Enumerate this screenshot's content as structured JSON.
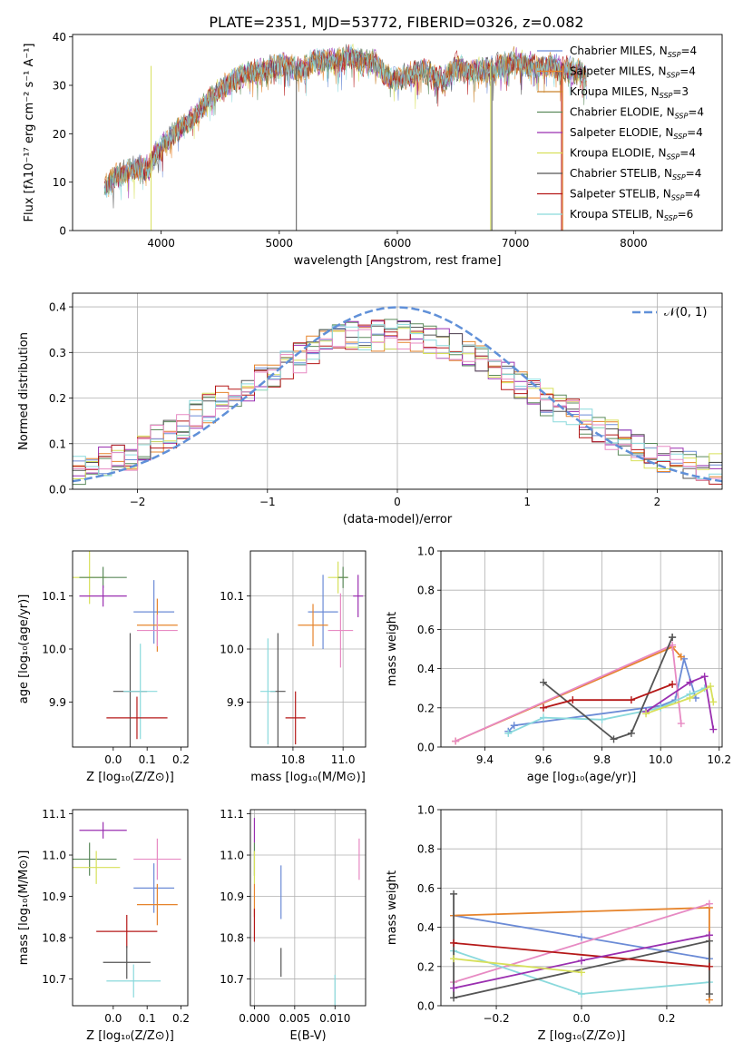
{
  "colors": {
    "Chabrier MILES": "#6b8bd6",
    "Salpeter MILES": "#e6842c",
    "Kroupa MILES": "#c9822a",
    "Chabrier ELODIE": "#5b8a5b",
    "Salpeter ELODIE": "#9a2fb0",
    "Kroupa ELODIE": "#d7e05a",
    "Chabrier STELIB": "#555555",
    "Salpeter STELIB": "#b51818",
    "Kroupa STELIB": "#8ad9dc",
    "Salpeter ELODIE (pink)": "#e78ac3",
    "normal": "#6090d8"
  },
  "chart_data": [
    {
      "id": "spectrum",
      "type": "line",
      "title": "PLATE=2351, MJD=53772, FIBERID=0326, z=0.082",
      "xlabel": "wavelength [Angstrom, rest frame]",
      "ylabel": "Flux [fλ10⁻¹⁷ erg cm⁻² s⁻¹ A⁻¹]",
      "xlim": [
        3250,
        8750
      ],
      "ylim": [
        0,
        40.5
      ],
      "xticks": [
        4000,
        5000,
        6000,
        7000,
        8000
      ],
      "yticks": [
        0,
        10,
        20,
        30,
        40
      ],
      "legend": "top-right",
      "legend_entries": [
        {
          "label": "Chabrier MILES, N",
          "sub": "SSP",
          "suffix": "=4",
          "color": "#6b8bd6"
        },
        {
          "label": "Salpeter MILES, N",
          "sub": "SSP",
          "suffix": "=4",
          "color": "#e6842c"
        },
        {
          "label": "Kroupa MILES, N",
          "sub": "SSP",
          "suffix": "=3",
          "color": "#c9822a"
        },
        {
          "label": "Chabrier ELODIE, N",
          "sub": "SSP",
          "suffix": "=4",
          "color": "#5b8a5b"
        },
        {
          "label": "Salpeter ELODIE, N",
          "sub": "SSP",
          "suffix": "=4",
          "color": "#9a2fb0"
        },
        {
          "label": "Kroupa ELODIE, N",
          "sub": "SSP",
          "suffix": "=4",
          "color": "#d7e05a"
        },
        {
          "label": "Chabrier STELIB, N",
          "sub": "SSP",
          "suffix": "=4",
          "color": "#555555"
        },
        {
          "label": "Salpeter STELIB, N",
          "sub": "SSP",
          "suffix": "=4",
          "color": "#b51818"
        },
        {
          "label": "Kroupa STELIB, N",
          "sub": "SSP",
          "suffix": "=6",
          "color": "#8ad9dc"
        }
      ],
      "envelope": {
        "x": [
          3520,
          3600,
          3700,
          3800,
          3900,
          3950,
          4000,
          4100,
          4200,
          4300,
          4400,
          4500,
          4600,
          4700,
          4800,
          4900,
          5000,
          5100,
          5200,
          5300,
          5400,
          5500,
          5600,
          5700,
          5800,
          5900,
          6000,
          6100,
          6200,
          6300,
          6400,
          6500,
          6600,
          6700,
          6800,
          6900,
          7000,
          7100,
          7200,
          7300,
          7400,
          7500,
          7600
        ],
        "y": [
          9,
          11,
          12,
          13,
          13,
          16,
          17,
          20,
          22,
          24,
          27,
          29,
          31,
          32,
          33,
          33,
          34,
          34,
          33,
          35,
          35,
          35,
          36,
          35,
          35,
          32,
          31,
          32,
          33,
          32,
          31,
          34,
          33,
          33,
          33,
          34,
          35,
          34,
          34,
          34,
          33,
          33,
          32
        ]
      },
      "spikes": [
        {
          "x": 3915,
          "low": 0,
          "color": "#d7e05a"
        },
        {
          "x": 5145,
          "low": 0,
          "color": "#555555"
        },
        {
          "x": 6790,
          "low": 0,
          "color": "#d7e05a"
        },
        {
          "x": 6800,
          "low": 0,
          "color": "#555555"
        },
        {
          "x": 7390,
          "low": 0,
          "color": "#b51818"
        },
        {
          "x": 7400,
          "low": 0,
          "color": "#e6842c"
        }
      ]
    },
    {
      "id": "residuals",
      "type": "histogram",
      "xlabel": "(data-model)/error",
      "ylabel": "Normed distribution",
      "xlim": [
        -2.5,
        2.5
      ],
      "ylim": [
        0,
        0.43
      ],
      "xticks": [
        -2,
        -1,
        0,
        1,
        2
      ],
      "yticks": [
        0.0,
        0.1,
        0.2,
        0.3,
        0.4
      ],
      "legend": "top-right",
      "legend_label": "𝒩(0, 1)",
      "normal_curve": {
        "mean": 0,
        "sigma": 1,
        "color": "#6090d8",
        "style": "dashed"
      },
      "bin_width": 0.1,
      "hist_base": {
        "x": [
          -2.5,
          -2.0,
          -1.5,
          -1.0,
          -0.5,
          0.0,
          0.5,
          1.0,
          1.5,
          2.0,
          2.5
        ],
        "y": [
          0.04,
          0.08,
          0.17,
          0.25,
          0.33,
          0.34,
          0.31,
          0.22,
          0.14,
          0.07,
          0.04
        ]
      },
      "series_colors": [
        "#6b8bd6",
        "#e6842c",
        "#5b8a5b",
        "#9a2fb0",
        "#d7e05a",
        "#555555",
        "#b51818",
        "#8ad9dc",
        "#e78ac3"
      ]
    },
    {
      "id": "age-vs-z",
      "type": "scatter",
      "xlabel": "Z [log₁₀(Z/Z⊙)]",
      "ylabel": "age  [log₁₀(age/yr)]",
      "xlim": [
        -0.12,
        0.22
      ],
      "ylim": [
        9.815,
        10.185
      ],
      "xticks": [
        0.0,
        0.1,
        0.2
      ],
      "yticks": [
        9.9,
        10.0,
        10.1
      ],
      "points": [
        {
          "x": -0.07,
          "y": 10.135,
          "xerr": 0.05,
          "yerr": 0.05,
          "color": "#d7e05a"
        },
        {
          "x": -0.03,
          "y": 10.135,
          "xerr": 0.07,
          "yerr": 0.02,
          "color": "#5b8a5b"
        },
        {
          "x": -0.03,
          "y": 10.1,
          "xerr": 0.07,
          "yerr": 0.02,
          "color": "#9a2fb0"
        },
        {
          "x": 0.12,
          "y": 10.07,
          "xerr": 0.06,
          "yerr": 0.06,
          "color": "#6b8bd6"
        },
        {
          "x": 0.13,
          "y": 10.045,
          "xerr": 0.06,
          "yerr": 0.05,
          "color": "#e6842c"
        },
        {
          "x": 0.13,
          "y": 10.035,
          "xerr": 0.06,
          "yerr": 0.03,
          "color": "#e78ac3"
        },
        {
          "x": 0.05,
          "y": 9.92,
          "xerr": 0.05,
          "yerr": 0.11,
          "color": "#555555"
        },
        {
          "x": 0.08,
          "y": 9.92,
          "xerr": 0.05,
          "yerr": 0.09,
          "color": "#8ad9dc"
        },
        {
          "x": 0.07,
          "y": 9.87,
          "xerr": 0.09,
          "yerr": 0.04,
          "color": "#b51818"
        }
      ]
    },
    {
      "id": "age-vs-mass",
      "type": "scatter",
      "xlabel": "mass [log₁₀(M/M⊙)]",
      "ylabel": "",
      "xlim": [
        10.63,
        11.09
      ],
      "ylim": [
        9.815,
        10.185
      ],
      "xticks": [
        10.8,
        11.0
      ],
      "yticks": [
        9.9,
        10.0,
        10.1
      ],
      "points": [
        {
          "x": 10.98,
          "y": 10.135,
          "xerr": 0.04,
          "yerr": 0.03,
          "color": "#d7e05a"
        },
        {
          "x": 11.0,
          "y": 10.135,
          "xerr": 0.02,
          "yerr": 0.02,
          "color": "#5b8a5b"
        },
        {
          "x": 11.06,
          "y": 10.1,
          "xerr": 0.02,
          "yerr": 0.04,
          "color": "#9a2fb0"
        },
        {
          "x": 10.92,
          "y": 10.07,
          "xerr": 0.06,
          "yerr": 0.07,
          "color": "#6b8bd6"
        },
        {
          "x": 10.88,
          "y": 10.045,
          "xerr": 0.06,
          "yerr": 0.04,
          "color": "#e6842c"
        },
        {
          "x": 10.99,
          "y": 10.035,
          "xerr": 0.05,
          "yerr": 0.07,
          "color": "#e78ac3"
        },
        {
          "x": 10.74,
          "y": 9.92,
          "xerr": 0.03,
          "yerr": 0.11,
          "color": "#555555"
        },
        {
          "x": 10.7,
          "y": 9.92,
          "xerr": 0.03,
          "yerr": 0.1,
          "color": "#8ad9dc"
        },
        {
          "x": 10.81,
          "y": 9.87,
          "xerr": 0.04,
          "yerr": 0.05,
          "color": "#b51818"
        }
      ]
    },
    {
      "id": "massweight-vs-age",
      "type": "line",
      "xlabel": "age  [log₁₀(age/yr)]",
      "ylabel": "mass weight",
      "xlim": [
        9.25,
        10.21
      ],
      "ylim": [
        0,
        1.0
      ],
      "xticks": [
        9.4,
        9.6,
        9.8,
        10.0,
        10.2
      ],
      "yticks": [
        0.0,
        0.2,
        0.4,
        0.6,
        0.8,
        1.0
      ],
      "series": [
        {
          "color": "#6b8bd6",
          "x": [
            9.48,
            9.5,
            10.0,
            10.05,
            10.08,
            10.12
          ],
          "y": [
            0.08,
            0.11,
            0.21,
            0.24,
            0.45,
            0.25
          ]
        },
        {
          "color": "#e6842c",
          "x": [
            9.3,
            10.04,
            10.07
          ],
          "y": [
            0.03,
            0.51,
            0.46
          ]
        },
        {
          "color": "#e78ac3",
          "x": [
            9.3,
            10.04,
            10.07
          ],
          "y": [
            0.03,
            0.52,
            0.12
          ]
        },
        {
          "color": "#8ad9dc",
          "x": [
            9.48,
            9.6,
            9.8,
            10.0,
            10.1,
            10.15
          ],
          "y": [
            0.07,
            0.15,
            0.14,
            0.2,
            0.27,
            0.3
          ]
        },
        {
          "color": "#555555",
          "x": [
            9.6,
            9.84,
            9.9,
            10.04,
            10.04
          ],
          "y": [
            0.33,
            0.04,
            0.07,
            0.56,
            0.56
          ]
        },
        {
          "color": "#b51818",
          "x": [
            9.6,
            9.7,
            9.9,
            10.04
          ],
          "y": [
            0.2,
            0.24,
            0.24,
            0.32
          ]
        },
        {
          "color": "#9a2fb0",
          "x": [
            9.95,
            10.1,
            10.15,
            10.18
          ],
          "y": [
            0.18,
            0.33,
            0.36,
            0.09
          ]
        },
        {
          "color": "#d7e05a",
          "x": [
            9.95,
            10.1,
            10.17,
            10.18
          ],
          "y": [
            0.17,
            0.25,
            0.31,
            0.23
          ]
        }
      ]
    },
    {
      "id": "mass-vs-z",
      "type": "scatter",
      "xlabel": "Z [log₁₀(Z/Z⊙)]",
      "ylabel": "mass [log₁₀(M/M⊙)]",
      "xlim": [
        -0.12,
        0.22
      ],
      "ylim": [
        10.635,
        11.11
      ],
      "xticks": [
        0.0,
        0.1,
        0.2
      ],
      "yticks": [
        10.7,
        10.8,
        10.9,
        11.0,
        11.1
      ],
      "points": [
        {
          "x": -0.03,
          "y": 11.06,
          "xerr": 0.07,
          "yerr": 0.02,
          "color": "#9a2fb0"
        },
        {
          "x": -0.07,
          "y": 10.99,
          "xerr": 0.08,
          "yerr": 0.04,
          "color": "#5b8a5b"
        },
        {
          "x": -0.05,
          "y": 10.97,
          "xerr": 0.07,
          "yerr": 0.04,
          "color": "#d7e05a"
        },
        {
          "x": 0.13,
          "y": 10.99,
          "xerr": 0.07,
          "yerr": 0.05,
          "color": "#e78ac3"
        },
        {
          "x": 0.12,
          "y": 10.92,
          "xerr": 0.06,
          "yerr": 0.06,
          "color": "#6b8bd6"
        },
        {
          "x": 0.13,
          "y": 10.88,
          "xerr": 0.06,
          "yerr": 0.05,
          "color": "#e6842c"
        },
        {
          "x": 0.04,
          "y": 10.815,
          "xerr": 0.09,
          "yerr": 0.04,
          "color": "#b51818"
        },
        {
          "x": 0.04,
          "y": 10.74,
          "xerr": 0.07,
          "yerr": 0.04,
          "color": "#555555"
        },
        {
          "x": 0.06,
          "y": 10.695,
          "xerr": 0.08,
          "yerr": 0.04,
          "color": "#8ad9dc"
        }
      ]
    },
    {
      "id": "mass-vs-ebv",
      "type": "scatter",
      "xlabel": "E(B-V)",
      "ylabel": "",
      "xlim": [
        -0.0005,
        0.0138
      ],
      "ylim": [
        10.635,
        11.11
      ],
      "xticks": [
        0.0,
        0.005,
        0.01
      ],
      "yticks": [
        10.7,
        10.8,
        10.9,
        11.0,
        11.1
      ],
      "points": [
        {
          "x": 0.0,
          "y": 11.06,
          "xerr": 0,
          "yerr": 0.03,
          "color": "#9a2fb0"
        },
        {
          "x": 0.0,
          "y": 10.99,
          "xerr": 0,
          "yerr": 0.04,
          "color": "#5b8a5b"
        },
        {
          "x": 0.0,
          "y": 10.97,
          "xerr": 0,
          "yerr": 0.04,
          "color": "#d7e05a"
        },
        {
          "x": 0.0,
          "y": 10.89,
          "xerr": 0,
          "yerr": 0.04,
          "color": "#e6842c"
        },
        {
          "x": 0.0,
          "y": 10.83,
          "xerr": 0,
          "yerr": 0.04,
          "color": "#b51818"
        },
        {
          "x": 0.0033,
          "y": 10.91,
          "xerr": 0,
          "yerr": 0.065,
          "color": "#6b8bd6"
        },
        {
          "x": 0.0033,
          "y": 10.74,
          "xerr": 0,
          "yerr": 0.035,
          "color": "#555555"
        },
        {
          "x": 0.01,
          "y": 10.67,
          "xerr": 0,
          "yerr": 0.04,
          "color": "#8ad9dc"
        },
        {
          "x": 0.013,
          "y": 10.99,
          "xerr": 0,
          "yerr": 0.05,
          "color": "#e78ac3"
        }
      ]
    },
    {
      "id": "massweight-vs-z",
      "type": "line",
      "xlabel": "Z [log₁₀(Z/Z⊙)]",
      "ylabel": "mass weight",
      "xlim": [
        -0.33,
        0.33
      ],
      "ylim": [
        0,
        1.0
      ],
      "xticks": [
        -0.2,
        0.0,
        0.2
      ],
      "yticks": [
        0.0,
        0.2,
        0.4,
        0.6,
        0.8,
        1.0
      ],
      "series": [
        {
          "color": "#6b8bd6",
          "x": [
            -0.3,
            0.0,
            0.3
          ],
          "y": [
            0.46,
            0.35,
            0.24
          ]
        },
        {
          "color": "#e6842c",
          "x": [
            -0.3,
            0.3,
            0.3
          ],
          "y": [
            0.46,
            0.5,
            0.03
          ]
        },
        {
          "color": "#e78ac3",
          "x": [
            -0.3,
            0.3
          ],
          "y": [
            0.12,
            0.52
          ]
        },
        {
          "color": "#8ad9dc",
          "x": [
            -0.3,
            0.0,
            0.3
          ],
          "y": [
            0.28,
            0.06,
            0.12
          ]
        },
        {
          "color": "#555555",
          "x": [
            -0.3,
            -0.3,
            0.3,
            0.3
          ],
          "y": [
            0.57,
            0.04,
            0.33,
            0.06
          ]
        },
        {
          "color": "#b51818",
          "x": [
            -0.3,
            0.3
          ],
          "y": [
            0.32,
            0.2
          ]
        },
        {
          "color": "#9a2fb0",
          "x": [
            -0.3,
            0.0,
            0.3
          ],
          "y": [
            0.09,
            0.23,
            0.36
          ]
        },
        {
          "color": "#d7e05a",
          "x": [
            -0.3,
            0.0
          ],
          "y": [
            0.24,
            0.17
          ]
        }
      ]
    }
  ]
}
